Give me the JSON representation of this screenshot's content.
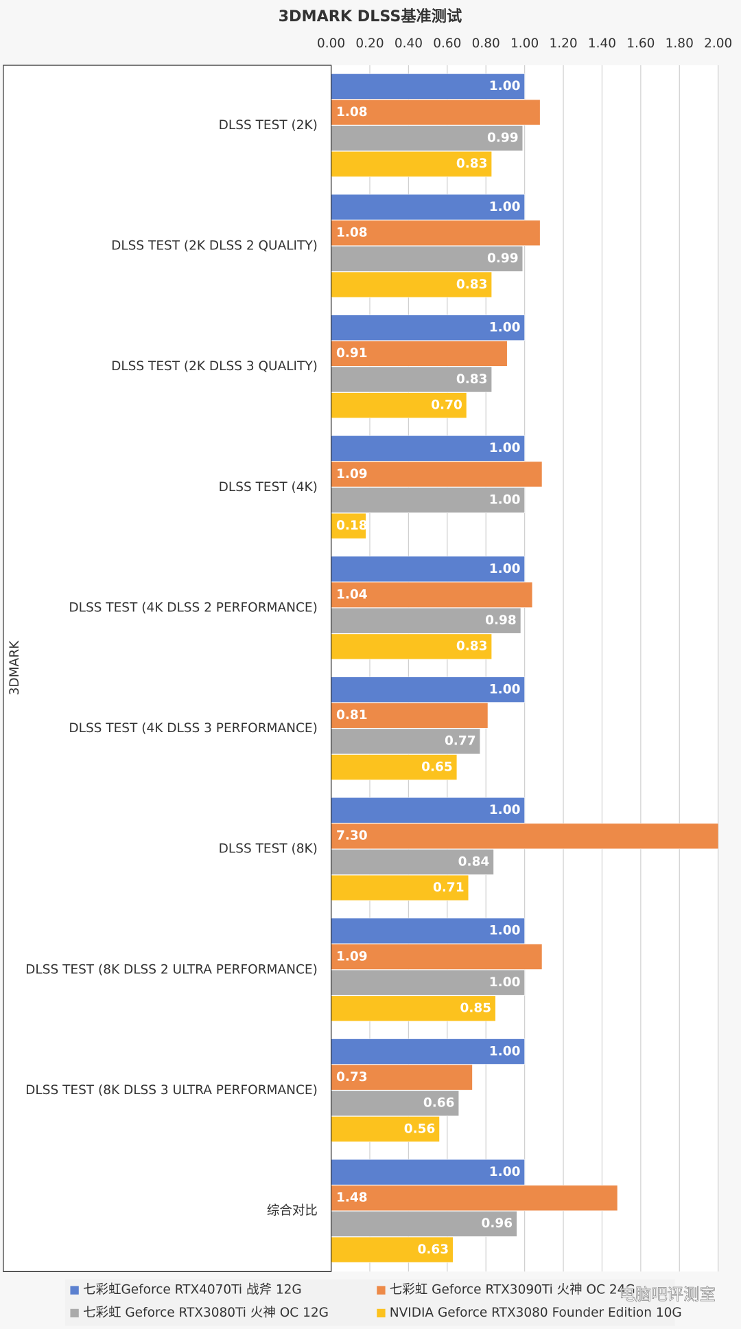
{
  "chart_data": {
    "type": "bar",
    "orientation": "horizontal",
    "title": "3DMARK DLSS基准测试",
    "y_label": "3DMARK",
    "categories": [
      "DLSS TEST (2K)",
      "DLSS TEST (2K DLSS 2 QUALITY)",
      "DLSS TEST (2K DLSS 3 QUALITY)",
      "DLSS TEST (4K)",
      "DLSS TEST (4K DLSS 2 PERFORMANCE)",
      "DLSS TEST (4K DLSS 3 PERFORMANCE)",
      "DLSS TEST (8K)",
      "DLSS TEST (8K DLSS 2 ULTRA PERFORMANCE)",
      "DLSS TEST (8K DLSS 3 ULTRA PERFORMANCE)",
      "综合对比"
    ],
    "series": [
      {
        "name": "七彩虹Geforce RTX4070Ti 战斧 12G",
        "color": "#5b80cf",
        "values": [
          1,
          1,
          1,
          1,
          1,
          1,
          1,
          1,
          1,
          1
        ],
        "value_labels": [
          "1.00",
          "1.00",
          "1.00",
          "1.00",
          "1.00",
          "1.00",
          "1.00",
          "1.00",
          "1.00",
          "1.00"
        ]
      },
      {
        "name": "七彩虹 Geforce RTX3090Ti 火神 OC 24G",
        "color": "#ed8a48",
        "values": [
          1.08,
          1.08,
          0.91,
          1.09,
          1.04,
          0.81,
          7.3,
          1.09,
          0.73,
          1.48
        ],
        "value_labels": [
          "1.08",
          "1.08",
          "0.91",
          "1.09",
          "1.04",
          "0.81",
          "7.30",
          "1.09",
          "0.73",
          "1.48"
        ]
      },
      {
        "name": "七彩虹 Geforce RTX3080Ti 火神 OC 12G",
        "color": "#aaaaaa",
        "values": [
          0.99,
          0.99,
          0.83,
          1,
          0.98,
          0.77,
          0.84,
          1,
          0.66,
          0.96
        ],
        "value_labels": [
          "0.99",
          "0.99",
          "0.83",
          "1.00",
          "0.98",
          "0.77",
          "0.84",
          "1.00",
          "0.66",
          "0.96"
        ]
      },
      {
        "name": "NVIDIA Geforce RTX3080 Founder Edition 10G",
        "color": "#fcc21e",
        "values": [
          0.83,
          0.83,
          0.7,
          0.18,
          0.83,
          0.65,
          0.71,
          0.85,
          0.56,
          0.63
        ],
        "value_labels": [
          "0.83",
          "0.83",
          "0.70",
          "0.18",
          "0.83",
          "0.65",
          "0.71",
          "0.85",
          "0.56",
          "0.63"
        ]
      }
    ],
    "xlim": [
      0,
      2
    ],
    "xticks": [
      {
        "value": 0,
        "label": "0.00"
      },
      {
        "value": 0.2,
        "label": "0.20"
      },
      {
        "value": 0.4,
        "label": "0.40"
      },
      {
        "value": 0.6,
        "label": "0.60"
      },
      {
        "value": 0.8,
        "label": "0.80"
      },
      {
        "value": 1,
        "label": "1.00"
      },
      {
        "value": 1.2,
        "label": "1.20"
      },
      {
        "value": 1.4,
        "label": "1.40"
      },
      {
        "value": 1.6,
        "label": "1.60"
      },
      {
        "value": 1.8,
        "label": "1.80"
      },
      {
        "value": 2,
        "label": "2.00"
      }
    ],
    "grid": true,
    "legend": "bottom",
    "watermark": "电脑吧评测室"
  }
}
